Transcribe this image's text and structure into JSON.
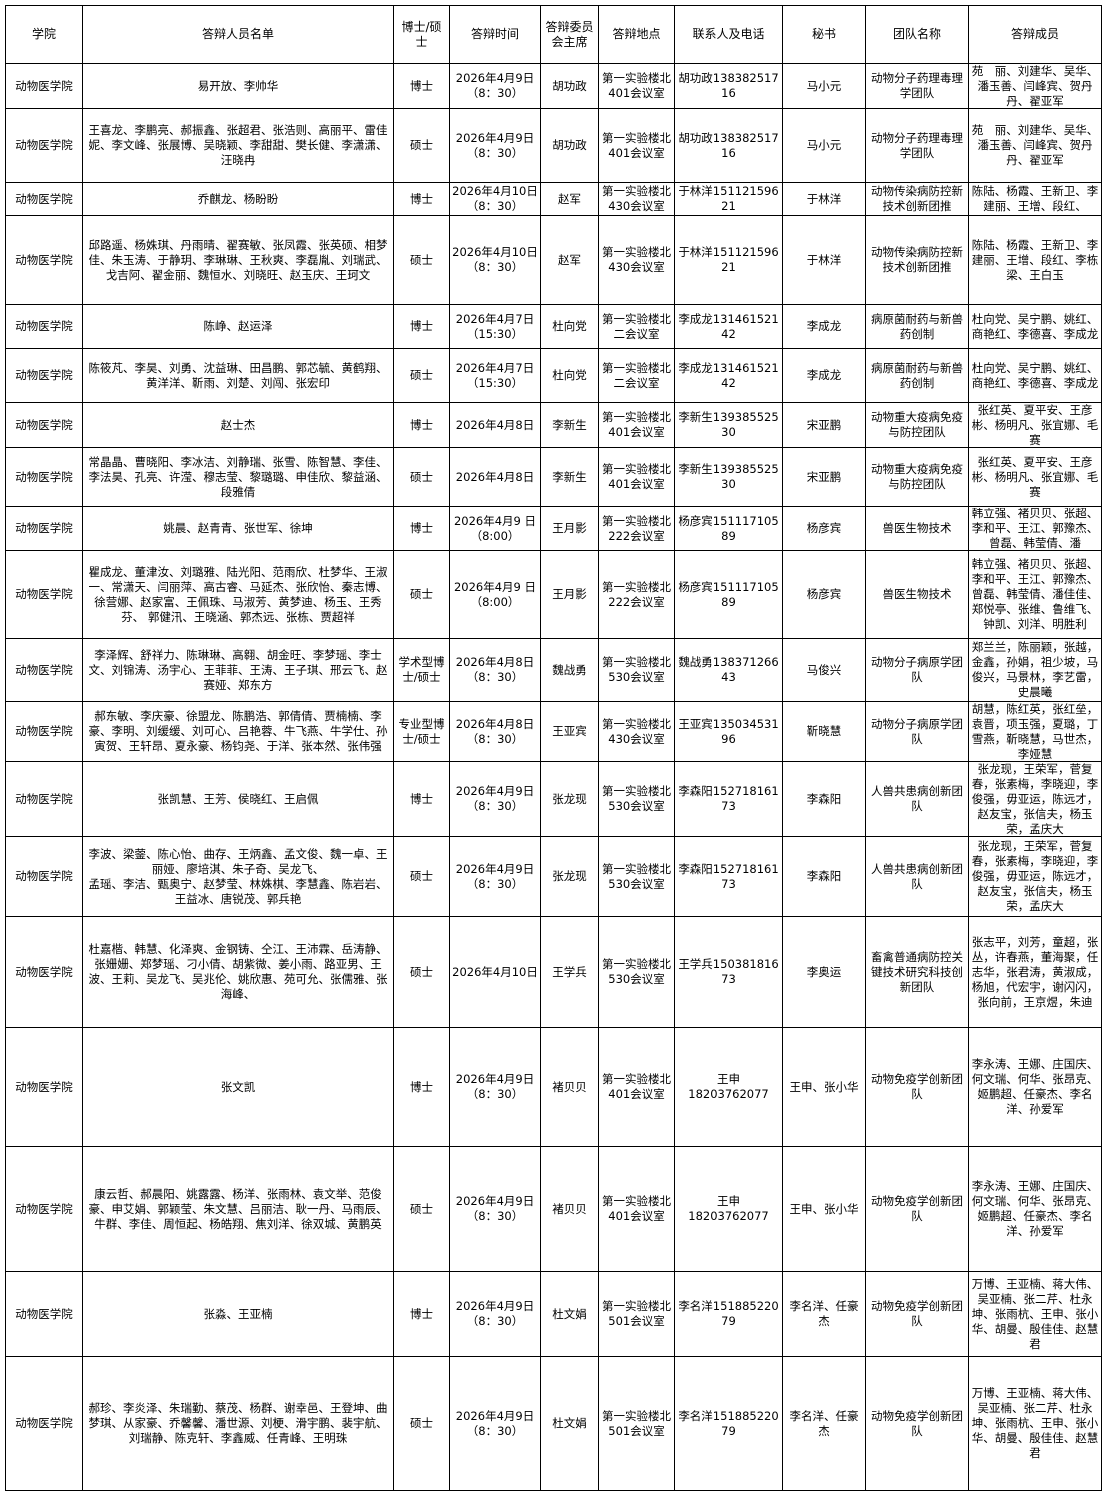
{
  "headers": [
    "学院",
    "答辩人员名单",
    "博士/硕士",
    "答辩时间",
    "答辩委员会主席",
    "答辩地点",
    "联系人及电话",
    "秘书",
    "团队名称",
    "答辩成员"
  ],
  "rows": [
    [
      "动物医学院",
      "易开放、李帅华",
      "博士",
      "2026年4月9日\n（8：30）",
      "胡功政",
      "第一实验楼北401会议室",
      "胡功政13838251716",
      "马小元",
      "动物分子药理毒理学团队",
      "苑　丽、刘建华、吴华、潘玉善、闫峰宾、贺丹丹、翟亚军"
    ],
    [
      "动物医学院",
      "王喜龙、李鹏亮、郝振鑫、张超君、张浩则、高丽平、雷佳妮、李文峰、张展博、吴晓颖、李甜甜、樊长健、李潇潇、汪晓冉",
      "硕士",
      "2026年4月9日\n（8：30）",
      "胡功政",
      "第一实验楼北401会议室",
      "胡功政13838251716",
      "马小元",
      "动物分子药理毒理学团队",
      "苑　丽、刘建华、吴华、潘玉善、闫峰宾、贺丹丹、翟亚军"
    ],
    [
      "动物医学院",
      "乔麒龙、杨盼盼",
      "博士",
      "2026年4月10日\n（8：30）",
      "赵军",
      "第一实验楼北430会议室",
      "于林洋15112159621",
      "于林洋",
      "动物传染病防控新技术创新团推",
      "陈陆、杨霞、王新卫、李建丽、王增、段红、"
    ],
    [
      "动物医学院",
      "邱路遥、杨姝琪、丹雨晴、翟赛敏、张凤霞、张英硕、相梦佳、朱玉涛、于静玥、李琳琳、王秋爽、李磊胤、刘瑞武、戈吉阿、翟金丽、魏恒水、刘晓旺、赵玉庆、王珂文",
      "硕士",
      "2026年4月10日\n（8：30）",
      "赵军",
      "第一实验楼北430会议室",
      "于林洋15112159621",
      "于林洋",
      "动物传染病防控新技术创新团推",
      "陈陆、杨霞、王新卫、李建丽、王增、段红、李栋梁、王白玉"
    ],
    [
      "动物医学院",
      "陈峥、赵运泽",
      "博士",
      "2026年4月7日\n（15:30）",
      "杜向党",
      "第一实验楼北二会议室",
      "李成龙13146152142",
      "李成龙",
      "病原菌耐药与新兽药创制",
      "杜向党、吴宁鹏、姚红、商艳红、李德喜、李成龙"
    ],
    [
      "动物医学院",
      "陈筱芃、李昊、刘勇、沈益琳、田昌鹏、郭芯毓、黄鹤翔、黄洋洋、靳雨、刘楚、刘闯、张宏印",
      "硕士",
      "2026年4月7日\n（15:30）",
      "杜向党",
      "第一实验楼北二会议室",
      "李成龙13146152142",
      "李成龙",
      "病原菌耐药与新兽药创制",
      "杜向党、吴宁鹏、姚红、商艳红、李德喜、李成龙"
    ],
    [
      "动物医学院",
      "赵士杰",
      "博士",
      "2026年4月8日",
      "李新生",
      "第一实验楼北401会议室",
      "李新生13938552530",
      "宋亚鹏",
      "动物重大疫病免疫与防控团队",
      "张红英、夏平安、王彦彬、杨明凡、张宜娜、毛赛"
    ],
    [
      "动物医学院",
      "常晶晶、曹晓阳、李冰洁、刘静瑞、张雪、陈智慧、李佳、李法昊、孔亮、许滢、穆志莹、黎璐璐、申佳欣、黎益涵、段雅倩",
      "硕士",
      "2026年4月8日",
      "李新生",
      "第一实验楼北401会议室",
      "李新生13938552530",
      "宋亚鹏",
      "动物重大疫病免疫与防控团队",
      "张红英、夏平安、王彦彬、杨明凡、张宜娜、毛赛"
    ],
    [
      "动物医学院",
      "姚晨、赵青青、张世军、徐坤",
      "博士",
      "2026年4月9 日\n（8:00）",
      "王月影",
      "第一实验楼北222会议室",
      "杨彦宾15111710589",
      "杨彦宾",
      "兽医生物技术",
      "韩立强、褚贝贝、张超、李和平、王江、郭豫杰、曾磊、韩莹倩、潘"
    ],
    [
      "动物医学院",
      "瞿成龙、董津汝、刘璐雅、陆光阳、范雨欣、杜梦华、王淑一、常潇天、闫丽萍、高古睿、马延杰、张欣怡、秦志博、徐营娜、赵家富、王佩珠、马淑芳、黄梦迪、杨玉、王秀芬、 郭健汛、王晓涵、郭杰远、张栋、贾超祥",
      "硕士",
      "2026年4月9 日\n（8:00）",
      "王月影",
      "第一实验楼北222会议室",
      "杨彦宾15111710589",
      "杨彦宾",
      "兽医生物技术",
      "韩立强、褚贝贝、张超、李和平、王江、郭豫杰、曾磊、韩莹倩、潘佳佳、郑悦亭、张维、鲁维飞、钟凯、刘洋、明胜利"
    ],
    [
      "动物医学院",
      "李泽辉、舒祥力、陈琳琳、高翱、胡金旺、李梦瑶、李士文、刘锦涛、汤宇心、王菲菲、王涛、王子琪、邢云飞、赵赛娅、郑东方",
      "学术型博士/硕士",
      "2026年4月8日\n（8：30）",
      "魏战勇",
      "第一实验楼北530会议室",
      "魏战勇13837126643",
      "马俊兴",
      "动物分子病原学团队",
      "郑兰兰，陈丽颖，张越，金鑫，孙娟，祖少坡，马俊兴，马景林，李艺雷，史晨曦"
    ],
    [
      "动物医学院",
      "郝东敏、李庆豪、徐盟龙、陈鹏浩、郭倩倩、贾楠楠、李豪、李明、刘缓缓、刘可心、吕艳蓉、牛飞燕、牛学仕、孙寅贺、王轩昂、夏永豪、杨钧尧、于洋、张本然、张伟强",
      "专业型博士/硕士",
      "2026年4月8日\n（8：30）",
      "王亚宾",
      "第一实验楼北430会议室",
      "王亚宾13503453196",
      "靳晓慧",
      "动物分子病原学团队",
      "胡慧，陈红英，张红垒，袁晋，项玉强，夏璐，丁雪燕，靳晓慧，马世杰，李娅慧"
    ],
    [
      "动物医学院",
      "张凯慧、王芳、侯晓红、王启佩",
      "博士",
      "2026年4月9日\n（8：30）",
      "张龙现",
      "第一实验楼北530会议室",
      "李森阳15271816173",
      "李森阳",
      "人兽共患病创新团队",
      "张龙现，王荣军，菅复春，张素梅，李晓迎，李俊强，毋亚运，陈远才，赵友宝，张信夫，杨玉荣，孟庆大"
    ],
    [
      "动物医学院",
      "李波、梁蓥、陈心怡、曲存、王炳鑫、孟文俊、魏一卓、王丽娅、廖培淇、朱子奇、吴龙飞、\n孟瑶、李洁、甄奥宁、赵梦莹、林姝棋、李慧鑫、陈岩岩、王益冰、唐锐茂、郭兵艳",
      "硕士",
      "2026年4月9日\n（8：30）",
      "张龙现",
      "第一实验楼北530会议室",
      "李森阳15271816173",
      "李森阳",
      "人兽共患病创新团队",
      "张龙现，王荣军，菅复春，张素梅，李晓迎，李俊强，毋亚运，陈远才，赵友宝，张信夫，杨玉荣，孟庆大"
    ],
    [
      "动物医学院",
      "杜嘉楷、韩慧、化泽爽、金钢铸、仝江、王沛霖、岳涛静、张姗姗、郑梦瑶、刁小倩、胡紫微、姜小雨、路亚男、王波、王莉、吴龙飞、吴兆伦、姚欣惠、苑可允、张儒雅、张海峰、",
      "硕士",
      "2026年4月10日",
      "王学兵",
      "第一实验楼北530会议室",
      "王学兵15038181673",
      "李奥运",
      "畜禽普通病防控关键技术研究科技创新团队",
      "张志平，刘芳，童超，张丛，许春燕，董海聚，任志华，张君涛，黄淑成，杨旭，代宏宇，谢闪闪，张向前，王京煜，朱迪"
    ],
    [
      "动物医学院",
      "张文凯",
      "博士",
      "2026年4月9日\n（8：30）",
      "褚贝贝",
      "第一实验楼北401会议室",
      "王申\n18203762077",
      "王申、张小华",
      "动物免疫学创新团队",
      "李永涛、王娜、庄国庆、何文瑞、何华、张昂克、姬鹏超、任豪杰、李名洋、孙爱军"
    ],
    [
      "动物医学院",
      "康云哲、郝晨阳、姚露露、杨洋、张雨林、袁文举、范俊豪、申艾娟、郭颖莹、朱文慧、吕丽洁、耿一丹、马雨辰、牛群、李佳、周恒起、杨皓翔、焦刘洋、徐双城、黄鹏英",
      "硕士",
      "2026年4月9日\n（8：30）",
      "褚贝贝",
      "第一实验楼北401会议室",
      "王申\n18203762077",
      "王申、张小华",
      "动物免疫学创新团队",
      "李永涛、王娜、庄国庆、何文瑞、何华、张昂克、姬鹏超、任豪杰、李名洋、孙爱军"
    ],
    [
      "动物医学院",
      "张淼、王亚楠",
      "博士",
      "2026年4月9日\n（8：30）",
      "杜文娟",
      "第一实验楼北501会议室",
      "李名洋15188522079",
      "李名洋、任豪杰",
      "动物免疫学创新团队",
      "万博、王亚楠、蒋大伟、吴亚楠、张二芹、杜永坤、张雨杭、王申、张小华、胡曼、殷佳佳、赵慧君"
    ],
    [
      "动物医学院",
      "郝珍、李炎泽、朱瑞勤、蔡茂、杨群、谢幸邑、王登坤、曲梦琪、从家豪、乔馨馨、潘世源、刘梗、滑宇鹏、裴宇航、刘瑞静、陈克轩、李鑫威、任青峰、王明珠",
      "硕士",
      "2026年4月9日\n（8：30）",
      "杜文娟",
      "第一实验楼北501会议室",
      "李名洋15188522079",
      "李名洋、任豪杰",
      "动物免疫学创新团队",
      "万博、王亚楠、蒋大伟、吴亚楠、张二芹、杜永坤、张雨杭、王申、张小华、胡曼、殷佳佳、赵慧君"
    ]
  ]
}
